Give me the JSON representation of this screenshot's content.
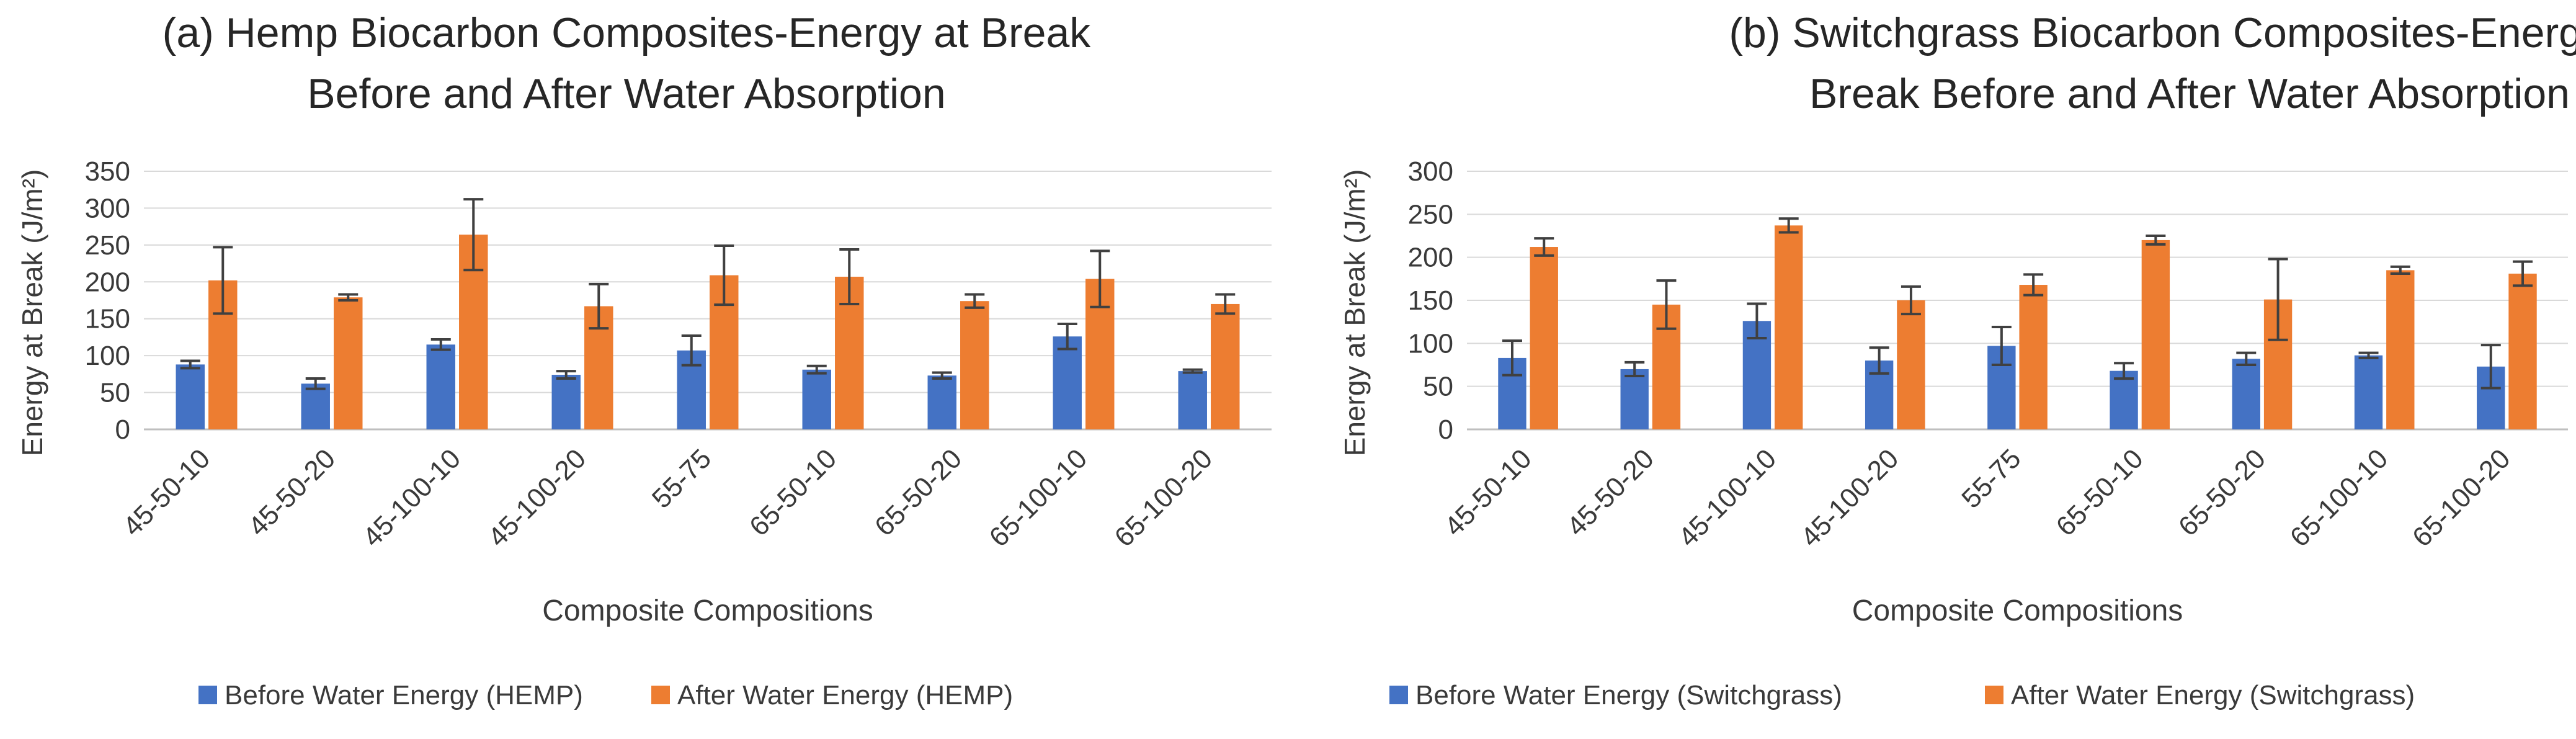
{
  "chart_data": [
    {
      "type": "bar",
      "title_lines": [
        "(a) Hemp Biocarbon Composites-Energy at Break",
        "Before and After Water Absorption"
      ],
      "xlabel": "Composite Compositions",
      "ylabel": "Energy at Break (J/m²)",
      "ylim": [
        0,
        350
      ],
      "yticks": [
        "0",
        "50",
        "100",
        "150",
        "200",
        "250",
        "300",
        "350"
      ],
      "grid": true,
      "legend_position": "bottom",
      "categories": [
        "45-50-10",
        "45-50-20",
        "45-100-10",
        "45-100-20",
        "55-75",
        "65-50-10",
        "65-50-20",
        "65-100-10",
        "65-100-20"
      ],
      "series": [
        {
          "name": "Before Water Energy (HEMP)",
          "color": "#4472C4",
          "values": [
            88,
            62,
            115,
            74,
            107,
            81,
            73,
            126,
            79
          ],
          "errors": [
            5,
            7,
            7,
            5,
            20,
            5,
            4,
            17,
            2
          ]
        },
        {
          "name": "After Water Energy (HEMP)",
          "color": "#ED7D31",
          "values": [
            202,
            179,
            264,
            167,
            209,
            207,
            174,
            204,
            170
          ],
          "errors": [
            45,
            4,
            48,
            30,
            40,
            37,
            9,
            38,
            13
          ]
        }
      ]
    },
    {
      "type": "bar",
      "title_lines": [
        "(b) Switchgrass Biocarbon Composites-Energy at",
        "Break Before and After Water Absorption"
      ],
      "xlabel": "Composite Compositions",
      "ylabel": "Energy at Break (J/m²)",
      "ylim": [
        0,
        300
      ],
      "yticks": [
        "0",
        "50",
        "100",
        "150",
        "200",
        "250",
        "300"
      ],
      "grid": true,
      "legend_position": "bottom",
      "categories": [
        "45-50-10",
        "45-50-20",
        "45-100-10",
        "45-100-20",
        "55-75",
        "65-50-10",
        "65-50-20",
        "65-100-10",
        "65-100-20"
      ],
      "series": [
        {
          "name": "Before Water Energy (Switchgrass)",
          "color": "#4472C4",
          "values": [
            83,
            70,
            126,
            80,
            97,
            68,
            82,
            86,
            73
          ],
          "errors": [
            20,
            8,
            20,
            15,
            22,
            9,
            7,
            3,
            25
          ]
        },
        {
          "name": "After Water Energy (Switchgrass)",
          "color": "#ED7D31",
          "values": [
            212,
            145,
            237,
            150,
            168,
            220,
            151,
            185,
            181
          ],
          "errors": [
            10,
            28,
            8,
            16,
            12,
            5,
            47,
            4,
            14
          ]
        }
      ]
    }
  ]
}
